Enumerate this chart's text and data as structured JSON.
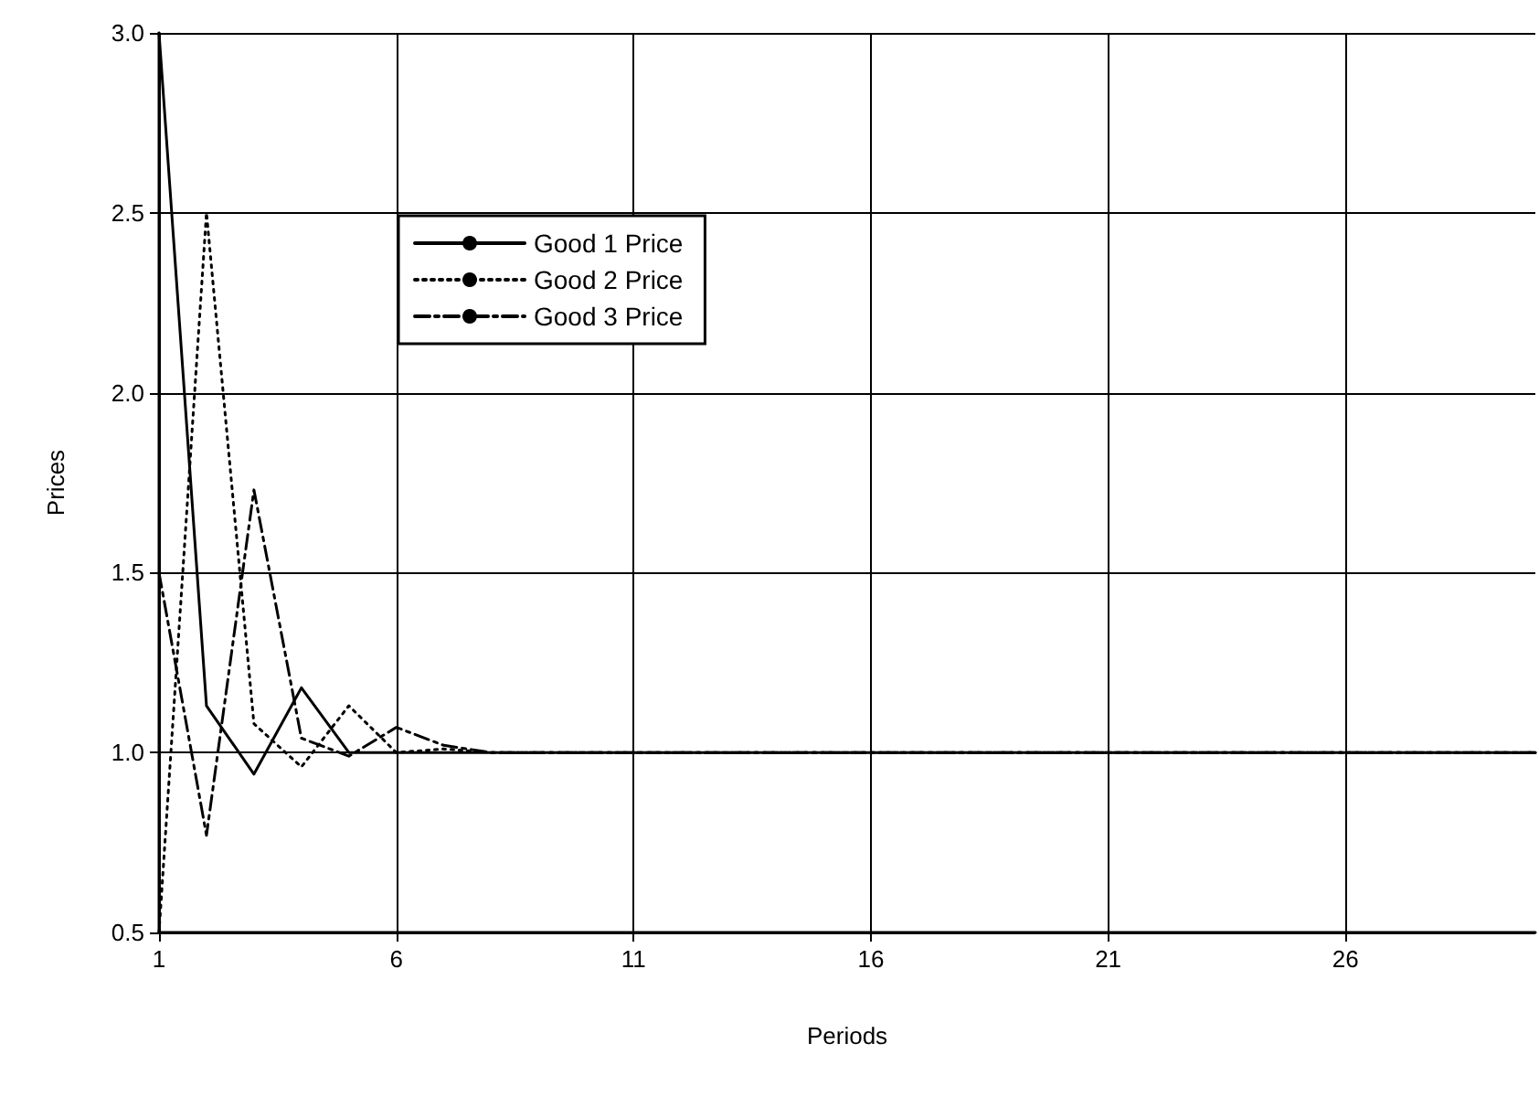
{
  "chart_data": {
    "type": "line",
    "xlabel": "Periods",
    "ylabel": "Prices",
    "x": [
      1,
      2,
      3,
      4,
      5,
      6,
      7,
      8,
      9,
      10,
      11,
      12,
      13,
      14,
      15,
      16,
      17,
      18,
      19,
      20,
      21,
      22,
      23,
      24,
      25,
      26,
      27,
      28,
      29,
      30
    ],
    "xlim": [
      1,
      30
    ],
    "xticks": [
      1,
      6,
      11,
      16,
      21,
      26
    ],
    "ylim": [
      0.5,
      3.0
    ],
    "yticks": [
      {
        "value": 0.5,
        "label": "0.5"
      },
      {
        "value": 1,
        "label": "1.0"
      },
      {
        "value": 1.5,
        "label": "1.5"
      },
      {
        "value": 2,
        "label": "2.0"
      },
      {
        "value": 2.5,
        "label": "2.5"
      },
      {
        "value": 3,
        "label": "3.0"
      }
    ],
    "grid": true,
    "legend": "top left",
    "marker": "none",
    "series": [
      {
        "name": "Good 1 Price",
        "color": "#000000",
        "line_style": "solid",
        "values": [
          3.0,
          1.13,
          0.94,
          1.18,
          1.0,
          1.0,
          1.0,
          1.0,
          1.0,
          1.0,
          1.0,
          1.0,
          1.0,
          1.0,
          1.0,
          1.0,
          1.0,
          1.0,
          1.0,
          1.0,
          1.0,
          1.0,
          1.0,
          1.0,
          1.0,
          1.0,
          1.0,
          1.0,
          1.0,
          1.0
        ]
      },
      {
        "name": "Good 2 Price",
        "color": "#000000",
        "line_style": "dotted",
        "values": [
          0.5,
          2.5,
          1.08,
          0.96,
          1.13,
          1.0,
          1.01,
          1.0,
          1.0,
          1.0,
          1.0,
          1.0,
          1.0,
          1.0,
          1.0,
          1.0,
          1.0,
          1.0,
          1.0,
          1.0,
          1.0,
          1.0,
          1.0,
          1.0,
          1.0,
          1.0,
          1.0,
          1.0,
          1.0,
          1.0
        ]
      },
      {
        "name": "Good 3 Price",
        "color": "#000000",
        "line_style": "dashed",
        "values": [
          1.5,
          0.77,
          1.73,
          1.04,
          0.99,
          1.07,
          1.02,
          1.0,
          1.0,
          1.0,
          1.0,
          1.0,
          1.0,
          1.0,
          1.0,
          1.0,
          1.0,
          1.0,
          1.0,
          1.0,
          1.0,
          1.0,
          1.0,
          1.0,
          1.0,
          1.0,
          1.0,
          1.0,
          1.0,
          1.0
        ]
      }
    ]
  }
}
